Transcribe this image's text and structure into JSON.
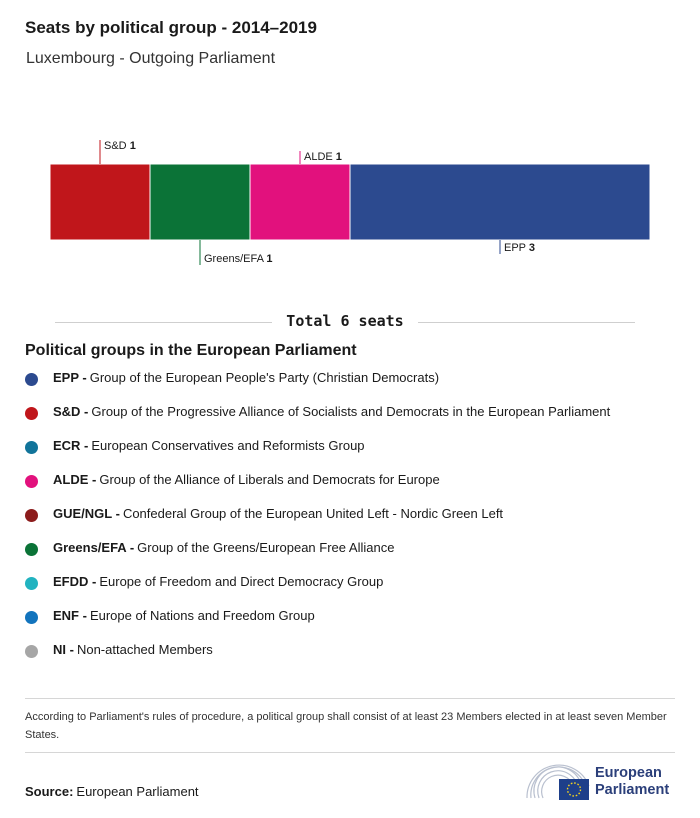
{
  "header": {
    "title": "Seats by political group - 2014–2019",
    "subtitle": "Luxembourg - Outgoing Parliament"
  },
  "chart_data": {
    "type": "bar",
    "orientation": "stacked-horizontal",
    "categories": [
      "S&D",
      "Greens/EFA",
      "ALDE",
      "EPP"
    ],
    "values": [
      1,
      1,
      1,
      3
    ],
    "colors": [
      "#c0161b",
      "#0b7337",
      "#e2117d",
      "#2c4a8f"
    ],
    "label_positions": [
      "above",
      "below",
      "above",
      "below"
    ],
    "total": 6
  },
  "total_label": "Total 6 seats",
  "legend": {
    "title": "Political groups in the European Parliament",
    "items": [
      {
        "abbr": "EPP -",
        "desc": "Group of the European People's Party (Christian Democrats)",
        "color": "#2c4a8f"
      },
      {
        "abbr": "S&D -",
        "desc": "Group of the Progressive Alliance of Socialists and Democrats in the European Parliament",
        "color": "#c0161b"
      },
      {
        "abbr": "ECR -",
        "desc": "European Conservatives and Reformists Group",
        "color": "#11749a"
      },
      {
        "abbr": "ALDE -",
        "desc": "Group of the Alliance of Liberals and Democrats for Europe",
        "color": "#e2117d"
      },
      {
        "abbr": "GUE/NGL -",
        "desc": "Confederal Group of the European United Left - Nordic Green Left",
        "color": "#8c1c1c"
      },
      {
        "abbr": "Greens/EFA -",
        "desc": "Group of the Greens/European Free Alliance",
        "color": "#0b7337"
      },
      {
        "abbr": "EFDD -",
        "desc": "Europe of Freedom and Direct Democracy Group",
        "color": "#21b3c0"
      },
      {
        "abbr": "ENF -",
        "desc": "Europe of Nations and Freedom Group",
        "color": "#1274bd"
      },
      {
        "abbr": "NI -",
        "desc": "Non-attached Members",
        "color": "#a6a6a6"
      }
    ]
  },
  "footnote": "According to Parliament's rules of procedure, a political group shall consist of at least 23 Members elected in at least seven Member States.",
  "source": {
    "label": "Source:",
    "value": "European Parliament"
  },
  "logo": {
    "line1": "European",
    "line2": "Parliament"
  }
}
